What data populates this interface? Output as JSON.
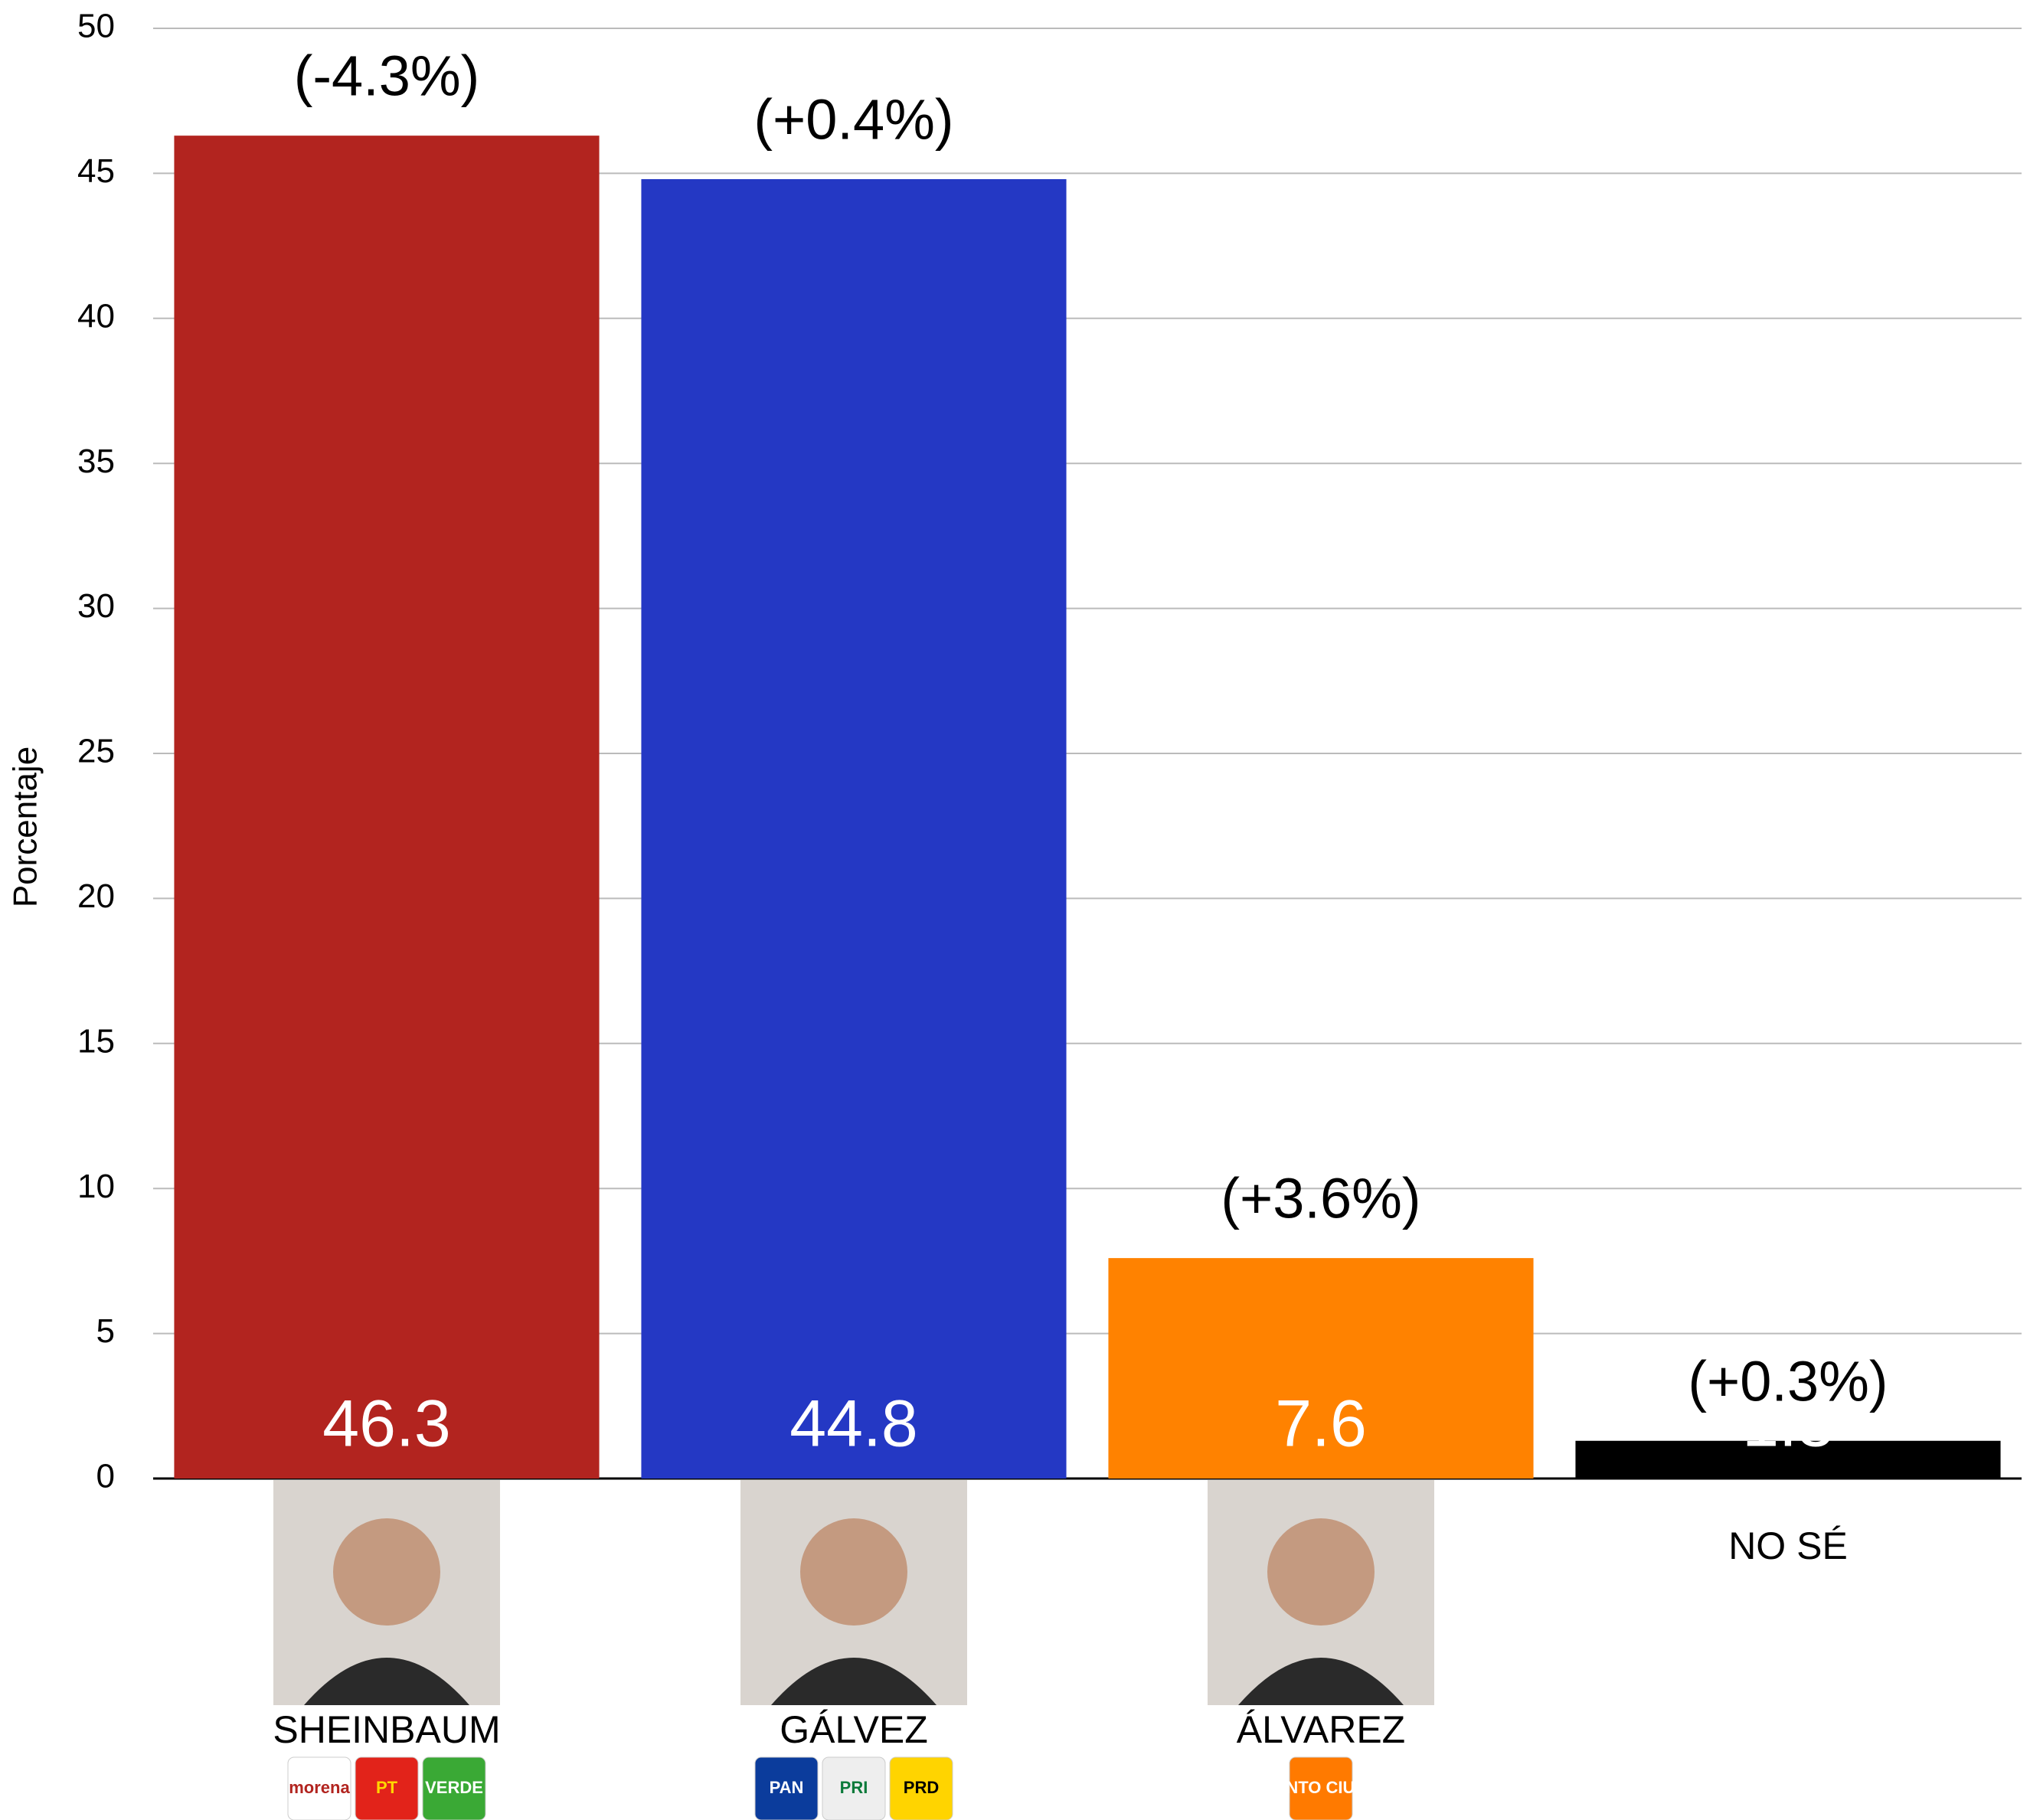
{
  "chart_data": {
    "type": "bar",
    "y_label": "Porcentaje",
    "categories": [
      "SHEINBAUM",
      "GÁLVEZ",
      "ÁLVAREZ",
      "NO SÉ"
    ],
    "values": [
      46.3,
      44.8,
      7.6,
      1.3
    ],
    "colors": [
      "#b2241f",
      "#2438c4",
      "#ff8200",
      "#000000"
    ],
    "annotations": [
      "(-4.3%)",
      "(+0.4%)",
      "(+3.6%)",
      "(+0.3%)"
    ],
    "party_logos": [
      [
        {
          "label": "morena",
          "color": "#ffffff",
          "text_color": "#b2241f"
        },
        {
          "label": "PT",
          "color": "#e2231a",
          "text_color": "#ffd700"
        },
        {
          "label": "VERDE",
          "color": "#3aa935",
          "text_color": "#ffffff"
        }
      ],
      [
        {
          "label": "PAN",
          "color": "#0b3c9c",
          "text_color": "#ffffff"
        },
        {
          "label": "PRI",
          "color": "#eeeeee",
          "text_color": "#0a7a3a"
        },
        {
          "label": "PRD",
          "color": "#ffd400",
          "text_color": "#000000"
        }
      ],
      [
        {
          "label": "MOVIMIENTO CIUDADANO",
          "color": "#ff7a00",
          "text_color": "#ffffff"
        }
      ],
      []
    ],
    "ylim": [
      0,
      50
    ],
    "yticks": [
      0,
      5,
      10,
      15,
      20,
      25,
      30,
      35,
      40,
      45,
      50
    ],
    "grid": true
  }
}
